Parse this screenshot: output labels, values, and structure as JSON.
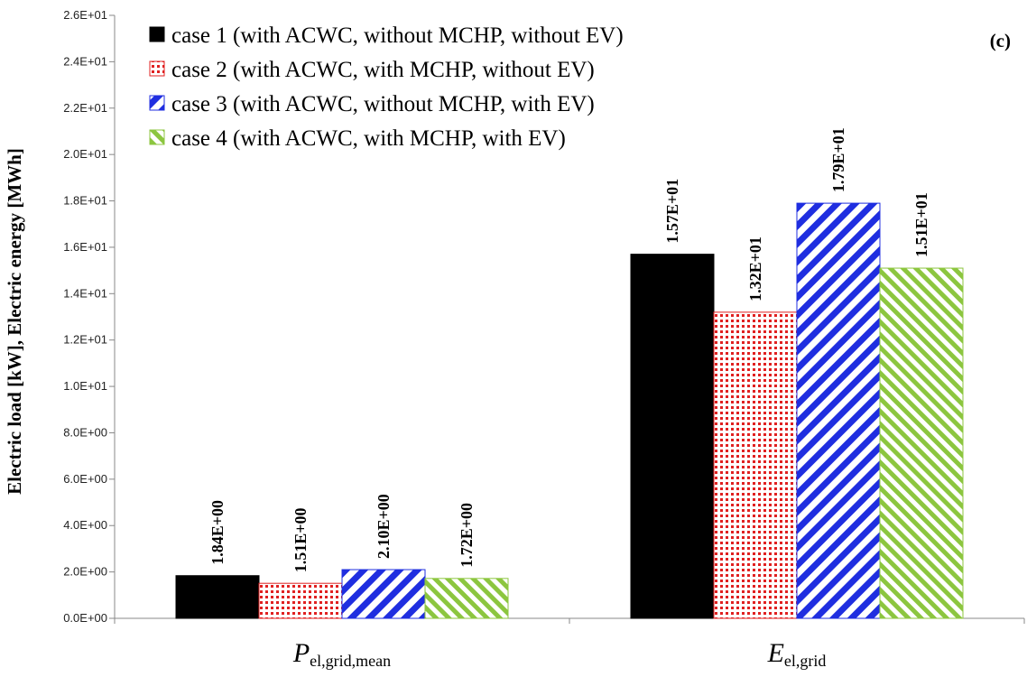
{
  "chart_data": {
    "type": "bar",
    "panel_label": "(c)",
    "ylabel": "Electric load [kW], Electric energy [MWh]",
    "ylim": [
      0,
      26
    ],
    "yticks": [
      0,
      2,
      4,
      6,
      8,
      10,
      12,
      14,
      16,
      18,
      20,
      22,
      24,
      26
    ],
    "ytick_labels": [
      "0.0E+00",
      "2.0E+00",
      "4.0E+00",
      "6.0E+00",
      "8.0E+00",
      "1.0E+01",
      "1.2E+01",
      "1.4E+01",
      "1.6E+01",
      "1.8E+01",
      "2.0E+01",
      "2.2E+01",
      "2.4E+01",
      "2.6E+01"
    ],
    "categories": [
      {
        "main": "P",
        "sub": "el,grid,mean"
      },
      {
        "main": "E",
        "sub": "el,grid"
      }
    ],
    "series": [
      {
        "name": "case 1 (with ACWC, without MCHP, without EV)",
        "values": [
          1.84,
          15.7
        ],
        "labels": [
          "1.84E+00",
          "1.57E+01"
        ],
        "pattern": "solid",
        "color": "#000000"
      },
      {
        "name": "case 2 (with ACWC, with MCHP, without  EV)",
        "values": [
          1.51,
          13.2
        ],
        "labels": [
          "1.51E+00",
          "1.32E+01"
        ],
        "pattern": "dots",
        "color": "#e02020"
      },
      {
        "name": "case 3 (with ACWC, without MCHP, with EV)",
        "values": [
          2.1,
          17.9
        ],
        "labels": [
          "2.10E+00",
          "1.79E+01"
        ],
        "pattern": "diagonal",
        "color": "#1f2ee0"
      },
      {
        "name": "case 4 (with ACWC, with MCHP, with EV)",
        "values": [
          1.72,
          15.1
        ],
        "labels": [
          "1.72E+00",
          "1.51E+01"
        ],
        "pattern": "diagonal",
        "color": "#8cc63f"
      }
    ],
    "grid": false,
    "legend_position": "top-left"
  }
}
